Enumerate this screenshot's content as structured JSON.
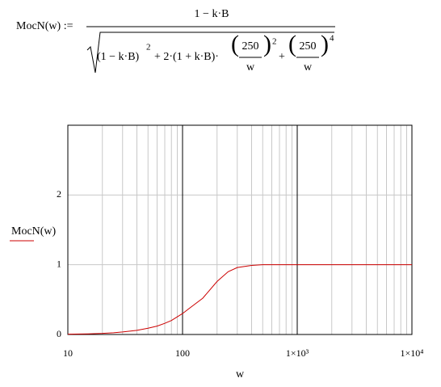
{
  "formula": {
    "lhs": "MocN(w) :=",
    "numerator": "1 − k·B",
    "term1": "(1 − k·B)",
    "exp1": "2",
    "term2": "+ 2·(1 + k·B)·",
    "num2": "250",
    "den2": "w",
    "exp2": "2",
    "plus": "+",
    "num3": "250",
    "den3": "w",
    "exp3": "4"
  },
  "chart_data": {
    "type": "line",
    "x_label": "w",
    "x": [
      10,
      15,
      20,
      25,
      30,
      40,
      50,
      60,
      70,
      80,
      100,
      120,
      150,
      200,
      250,
      300,
      400,
      500,
      700,
      1000,
      2000,
      5000,
      10000
    ],
    "series": [
      {
        "name": "MocN(w)",
        "color": "#cc0000",
        "values": [
          0.004,
          0.009,
          0.016,
          0.025,
          0.036,
          0.06,
          0.09,
          0.12,
          0.16,
          0.2,
          0.3,
          0.4,
          0.52,
          0.76,
          0.9,
          0.96,
          0.99,
          1,
          1,
          1,
          1,
          1,
          1
        ]
      }
    ],
    "xlim": [
      10,
      10000
    ],
    "x_log": true,
    "xticks": [
      10,
      100,
      {
        "value": 1000,
        "label": "1×10³"
      },
      {
        "value": 10000,
        "label": "1×10⁴"
      }
    ],
    "xminorticks": [
      20,
      30,
      40,
      50,
      60,
      70,
      80,
      90,
      200,
      300,
      400,
      500,
      600,
      700,
      800,
      900,
      2000,
      3000,
      4000,
      5000,
      6000,
      7000,
      8000,
      9000
    ],
    "ylim": [
      0,
      3
    ],
    "yticks": [
      0,
      1,
      2
    ],
    "grid": true
  }
}
